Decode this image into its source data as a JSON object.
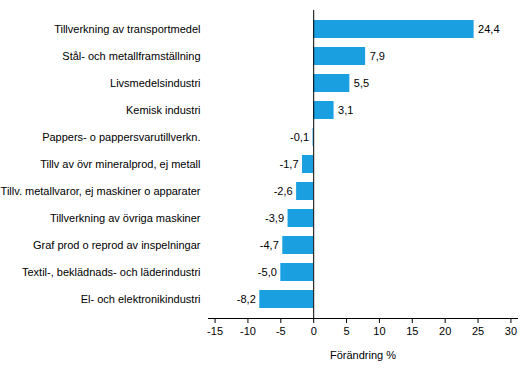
{
  "chart_data": {
    "type": "bar",
    "orientation": "horizontal",
    "categories": [
      "Tillverkning av transportmedel",
      "Stål- och metallframställning",
      "Livsmedelsindustri",
      "Kemisk industri",
      "Pappers- o pappersvarutillverkn.",
      "Tillv av övr mineralprod, ej metall",
      "Tillv. metallvaror, ej maskiner o apparater",
      "Tillverkning av övriga maskiner",
      "Graf prod o reprod av inspelningar",
      "Textil-, beklädnads- och läderindustri",
      "El- och elektronikindustri"
    ],
    "values": [
      24.4,
      7.9,
      5.5,
      3.1,
      -0.1,
      -1.7,
      -2.6,
      -3.9,
      -4.7,
      -5.0,
      -8.2
    ],
    "value_labels": [
      "24,4",
      "7,9",
      "5,5",
      "3,1",
      "-0,1",
      "-1,7",
      "-2,6",
      "-3,9",
      "-4,7",
      "-5,0",
      "-8,2"
    ],
    "data_labels": true,
    "color": "#1a9fe0",
    "x_label": "Förändring %",
    "xlim": [
      -16,
      31
    ],
    "xticks": [
      -15,
      -10,
      -5,
      0,
      5,
      10,
      15,
      20,
      25,
      30
    ],
    "grid": false
  }
}
